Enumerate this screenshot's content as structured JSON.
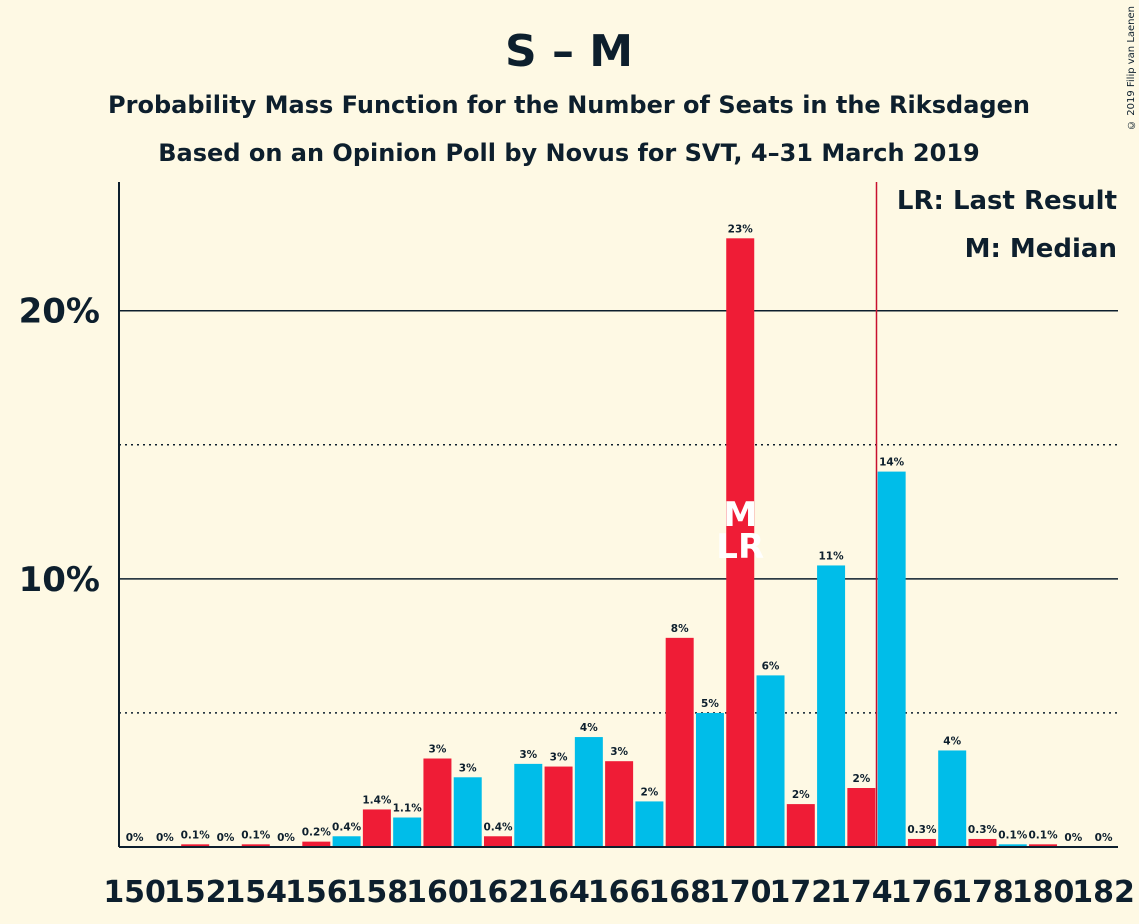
{
  "chart_data": {
    "type": "bar",
    "title": "S – M",
    "subtitle1": "Probability Mass Function for the Number of Seats in the Riksdagen",
    "subtitle2": "Based on an Opinion Poll by Novus for SVT, 4–31 March 2019",
    "xlabel": "",
    "ylabel": "",
    "ylim": [
      0,
      24.8
    ],
    "yticks": [
      10,
      20
    ],
    "ytick_labels": [
      "10%",
      "20%"
    ],
    "dotted_gridlines": [
      5,
      15
    ],
    "x": [
      150,
      151,
      152,
      153,
      154,
      155,
      156,
      157,
      158,
      159,
      160,
      161,
      162,
      163,
      164,
      165,
      166,
      167,
      168,
      169,
      170,
      171,
      172,
      173,
      174,
      175,
      176,
      177,
      178,
      179,
      180,
      181,
      182
    ],
    "values": [
      0,
      0,
      0.1,
      0,
      0.1,
      0,
      0.2,
      0.4,
      1.4,
      1.1,
      3.3,
      2.6,
      0.4,
      3.1,
      3.0,
      4.1,
      3.2,
      1.7,
      7.8,
      5.0,
      22.7,
      6.4,
      1.6,
      10.5,
      2.2,
      14.0,
      0.3,
      3.6,
      0.3,
      0.1,
      0.1,
      0,
      0
    ],
    "value_labels": [
      "0%",
      "0%",
      "0.1%",
      "0%",
      "0.1%",
      "0%",
      "0.2%",
      "0.4%",
      "1.4%",
      "1.1%",
      "3%",
      "3%",
      "0.4%",
      "3%",
      "3%",
      "4%",
      "3%",
      "2%",
      "8%",
      "5%",
      "23%",
      "6%",
      "2%",
      "11%",
      "2%",
      "14%",
      "0.3%",
      "4%",
      "0.3%",
      "0.1%",
      "0.1%",
      "0%",
      "0%"
    ],
    "xtick_labels": [
      "150",
      "152",
      "154",
      "156",
      "158",
      "160",
      "162",
      "164",
      "166",
      "168",
      "170",
      "172",
      "174",
      "176",
      "178",
      "180",
      "182"
    ],
    "colors": {
      "red": "#ef1c36",
      "blue": "#00bde9",
      "ink": "#0d1f2d",
      "lr_line": "#c8102e"
    },
    "median_seat": 170,
    "median_marker": "M",
    "last_result_marker": "LR",
    "last_result_seat": 170,
    "majority_line_at": 174.5,
    "legend": [
      "LR: Last Result",
      "M: Median"
    ],
    "legend_position": "top-right"
  },
  "copyright": "© 2019 Filip van Laenen"
}
